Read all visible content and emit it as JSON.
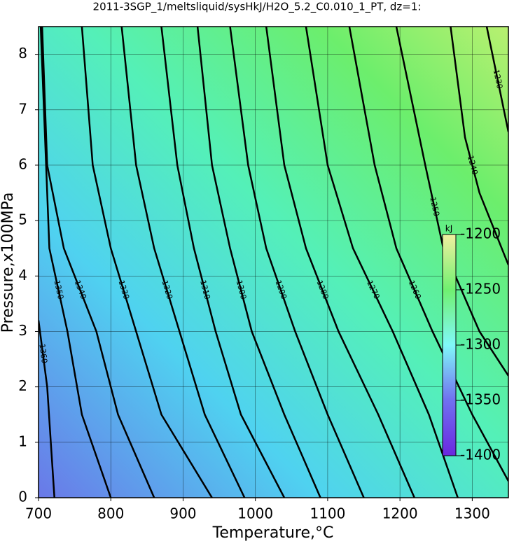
{
  "chart_data": {
    "type": "contour",
    "title": "2011-3SGP_1/meltsliquid/sysHkJ/H2O_5.2_C0.010_1_PT, dz=1:",
    "x_label": "Temperature,°C",
    "y_label": "Pressure,x100MPa",
    "xlim": [
      700,
      1350
    ],
    "ylim": [
      0,
      8.5
    ],
    "xticks": [
      700,
      800,
      900,
      1000,
      1100,
      1200,
      1300
    ],
    "yticks": [
      0,
      1,
      2,
      3,
      4,
      5,
      6,
      7,
      8
    ],
    "grid": true,
    "line_color": "#000000",
    "contours": [
      {
        "level": 1360,
        "x": [
          722,
          712,
          700
        ],
        "y": [
          0,
          2,
          3.2
        ]
      },
      {
        "level": 1350,
        "x": [
          800,
          760,
          740,
          715,
          703
        ],
        "y": [
          0,
          1.5,
          3,
          4.5,
          8.5
        ]
      },
      {
        "level": 1340,
        "x": [
          860,
          810,
          780,
          735,
          712,
          705
        ],
        "y": [
          0,
          1.5,
          3,
          4.5,
          6,
          8.5
        ]
      },
      {
        "level": 1330,
        "x": [
          940,
          870,
          835,
          800,
          775,
          760
        ],
        "y": [
          0,
          1.5,
          3,
          4.5,
          6,
          8.5
        ]
      },
      {
        "level": 1320,
        "x": [
          985,
          930,
          895,
          860,
          835,
          815
        ],
        "y": [
          0,
          1.5,
          3,
          4.5,
          6,
          8.5
        ]
      },
      {
        "level": 1310,
        "x": [
          1040,
          980,
          945,
          915,
          892,
          870
        ],
        "y": [
          0,
          1.5,
          3,
          4.5,
          6,
          8.5
        ]
      },
      {
        "level": 1300,
        "x": [
          1090,
          1040,
          995,
          965,
          940,
          920
        ],
        "y": [
          0,
          1.5,
          3,
          4.5,
          6,
          8.5
        ]
      },
      {
        "level": 1290,
        "x": [
          1150,
          1100,
          1055,
          1015,
          990,
          965
        ],
        "y": [
          0,
          1.5,
          3,
          4.5,
          6,
          8.5
        ]
      },
      {
        "level": 1280,
        "x": [
          1220,
          1170,
          1115,
          1070,
          1040,
          1015
        ],
        "y": [
          0,
          1.5,
          3,
          4.5,
          6,
          8.5
        ]
      },
      {
        "level": 1270,
        "x": [
          1280,
          1240,
          1190,
          1135,
          1100,
          1070
        ],
        "y": [
          0,
          1.5,
          3,
          4.5,
          6,
          8.5
        ]
      },
      {
        "level": 1260,
        "x": [
          1350,
          1300,
          1245,
          1195,
          1165,
          1130
        ],
        "y": [
          0.3,
          1.5,
          3,
          4.5,
          6,
          8.5
        ]
      },
      {
        "level": 1250,
        "x": [
          1350,
          1310,
          1260,
          1235,
          1195
        ],
        "y": [
          2.2,
          3,
          4.5,
          6,
          8.5
        ]
      },
      {
        "level": 1240,
        "x": [
          1350,
          1310,
          1290,
          1270
        ],
        "y": [
          4.2,
          5.5,
          6.5,
          8.5
        ]
      },
      {
        "level": 1230,
        "x": [
          1350,
          1320
        ],
        "y": [
          6.6,
          8.5
        ]
      }
    ],
    "colorbar": {
      "label": "kJ",
      "lim": [
        -1400,
        -1200
      ],
      "ticks": [
        -1200,
        -1250,
        -1300,
        -1350,
        -1400
      ]
    }
  }
}
